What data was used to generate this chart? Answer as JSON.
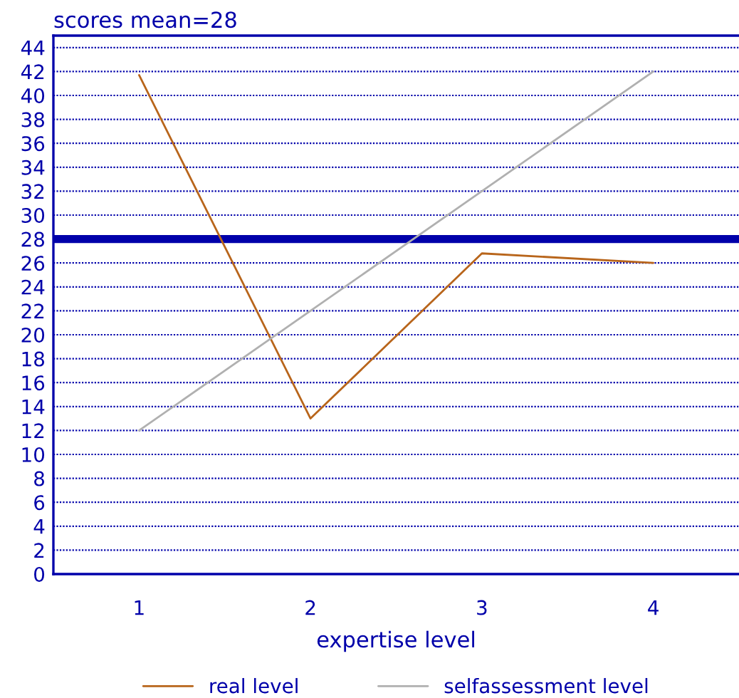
{
  "chart_data": {
    "type": "line",
    "title": "scores mean=28",
    "xlabel": "expertise level",
    "x": [
      1,
      2,
      3,
      4
    ],
    "series": [
      {
        "name": "real level",
        "color": "#b8651b",
        "values": [
          41.7,
          13,
          26.8,
          26
        ]
      },
      {
        "name": "selfassessment level",
        "color": "#b0b0b0",
        "values": [
          12,
          22,
          32,
          42
        ]
      }
    ],
    "xlim": [
      0.5,
      4.5
    ],
    "xticks": [
      1,
      2,
      3,
      4
    ],
    "ylim": [
      0,
      45
    ],
    "yticks": [
      0,
      2,
      4,
      6,
      8,
      10,
      12,
      14,
      16,
      18,
      20,
      22,
      24,
      26,
      28,
      30,
      32,
      34,
      36,
      38,
      40,
      42,
      44
    ],
    "ref_lines": [
      {
        "axis": "y",
        "value": 28,
        "color": "#0000aa"
      }
    ],
    "grid": "y",
    "legend": "bottom",
    "marker": "none",
    "line_style": "solid"
  }
}
